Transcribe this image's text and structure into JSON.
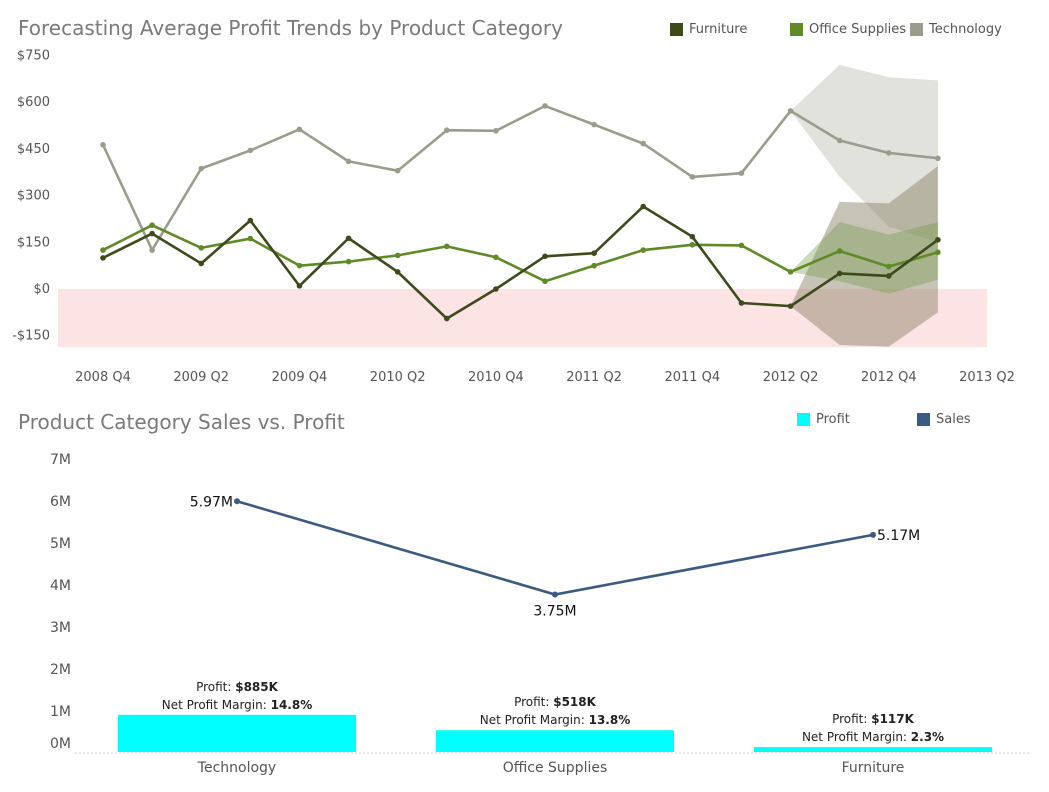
{
  "chart_data": [
    {
      "type": "line",
      "title": "Forecasting Average Profit Trends by Product Category",
      "xlabel": "",
      "ylabel": "",
      "x_ticks": [
        "2008 Q4",
        "2009 Q2",
        "2009 Q4",
        "2010 Q2",
        "2010 Q4",
        "2011 Q2",
        "2011 Q4",
        "2012 Q2",
        "2012 Q4",
        "2013 Q2"
      ],
      "periods": [
        "2008 Q4",
        "2009 Q1",
        "2009 Q2",
        "2009 Q3",
        "2009 Q4",
        "2010 Q1",
        "2010 Q2",
        "2010 Q3",
        "2010 Q4",
        "2011 Q1",
        "2011 Q2",
        "2011 Q3",
        "2011 Q4",
        "2012 Q1",
        "2012 Q2",
        "2012 Q3",
        "2012 Q4",
        "2013 Q1",
        "2013 Q2"
      ],
      "y_ticks": [
        -150,
        0,
        150,
        300,
        450,
        600,
        750
      ],
      "y_tick_labels": [
        "-$150",
        "$0",
        "$150",
        "$300",
        "$450",
        "$600",
        "$750"
      ],
      "ylim": [
        -200,
        780
      ],
      "negative_region_color": "#fde4e4",
      "series": [
        {
          "name": "Furniture",
          "color": "#3d4a1c",
          "values": [
            100,
            178,
            82,
            220,
            10,
            163,
            55,
            -95,
            0,
            105,
            115,
            265,
            168,
            -45,
            -55,
            50,
            42,
            158
          ],
          "forecast_band": {
            "upper": [
              -55,
              280,
              275,
              395
            ],
            "lower": [
              -55,
              -180,
              -185,
              -75
            ]
          }
        },
        {
          "name": "Office Supplies",
          "color": "#5f8a27",
          "values": [
            125,
            205,
            132,
            162,
            75,
            88,
            108,
            137,
            102,
            25,
            75,
            125,
            142,
            140,
            55,
            122,
            72,
            118
          ],
          "forecast_band": {
            "upper": [
              55,
              215,
              175,
              215
            ],
            "lower": [
              55,
              25,
              -15,
              30
            ]
          }
        },
        {
          "name": "Technology",
          "color": "#9c9c8e",
          "values": [
            463,
            125,
            387,
            445,
            513,
            410,
            380,
            510,
            508,
            588,
            528,
            467,
            360,
            372,
            572,
            477,
            437,
            420
          ],
          "forecast_band": {
            "upper": [
              572,
              720,
              680,
              670
            ],
            "lower": [
              572,
              360,
              200,
              150
            ]
          }
        }
      ],
      "forecast_start_index": 14,
      "legend": [
        "Furniture",
        "Office Supplies",
        "Technology"
      ],
      "legend_position": "top-right"
    },
    {
      "type": "bar+line",
      "title": "Product Category Sales vs. Profit",
      "categories": [
        "Technology",
        "Office Supplies",
        "Furniture"
      ],
      "y_ticks": [
        0,
        1000000,
        2000000,
        3000000,
        4000000,
        5000000,
        6000000,
        7000000
      ],
      "y_tick_labels": [
        "0M",
        "1M",
        "2M",
        "3M",
        "4M",
        "5M",
        "6M",
        "7M"
      ],
      "ylim": [
        0,
        7000000
      ],
      "series": [
        {
          "name": "Profit",
          "type": "bar",
          "color": "#00ffff",
          "values": [
            885000,
            518000,
            117000
          ]
        },
        {
          "name": "Sales",
          "type": "line",
          "color": "#3d5a80",
          "values": [
            5970000,
            3750000,
            5170000
          ],
          "data_labels": [
            "5.97M",
            "3.75M",
            "5.17M"
          ]
        }
      ],
      "profit_labels": [
        {
          "prefix": "Profit: ",
          "value": "$885K",
          "margin_prefix": "Net Profit Margin: ",
          "margin": "14.8%"
        },
        {
          "prefix": "Profit: ",
          "value": "$518K",
          "margin_prefix": "Net Profit Margin: ",
          "margin": "13.8%"
        },
        {
          "prefix": "Profit: ",
          "value": "$117K",
          "margin_prefix": "Net Profit Margin: ",
          "margin": "2.3%"
        }
      ],
      "legend": [
        "Profit",
        "Sales"
      ],
      "legend_position": "top-right"
    }
  ]
}
